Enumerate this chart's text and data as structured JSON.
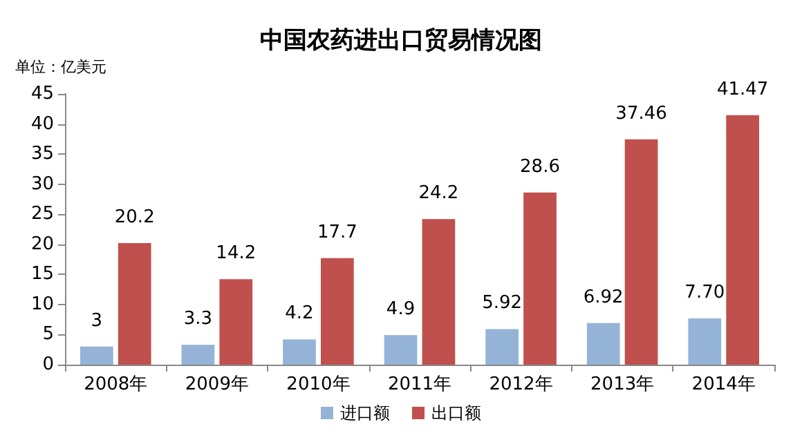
{
  "chart_data": {
    "type": "bar",
    "title": "中国农药进出口贸易情况图",
    "ylabel": "单位：亿美元",
    "categories": [
      "2008年",
      "2009年",
      "2010年",
      "2011年",
      "2012年",
      "2013年",
      "2014年"
    ],
    "series": [
      {
        "name": "进口额",
        "color": "#95b3d7",
        "values": [
          3,
          3.3,
          4.2,
          4.9,
          5.92,
          6.92,
          7.7
        ],
        "value_labels": [
          "3",
          "3.3",
          "4.2",
          "4.9",
          "5.92",
          "6.92",
          "7.70"
        ]
      },
      {
        "name": "出口额",
        "color": "#c0504d",
        "values": [
          20.2,
          14.2,
          17.7,
          24.2,
          28.6,
          37.46,
          41.47
        ],
        "value_labels": [
          "20.2",
          "14.2",
          "17.7",
          "24.2",
          "28.6",
          "37.46",
          "41.47"
        ]
      }
    ],
    "ylim": [
      0,
      45
    ],
    "yticks": [
      0,
      5,
      10,
      15,
      20,
      25,
      30,
      35,
      40,
      45
    ],
    "grid": false,
    "legend": "bottom"
  }
}
